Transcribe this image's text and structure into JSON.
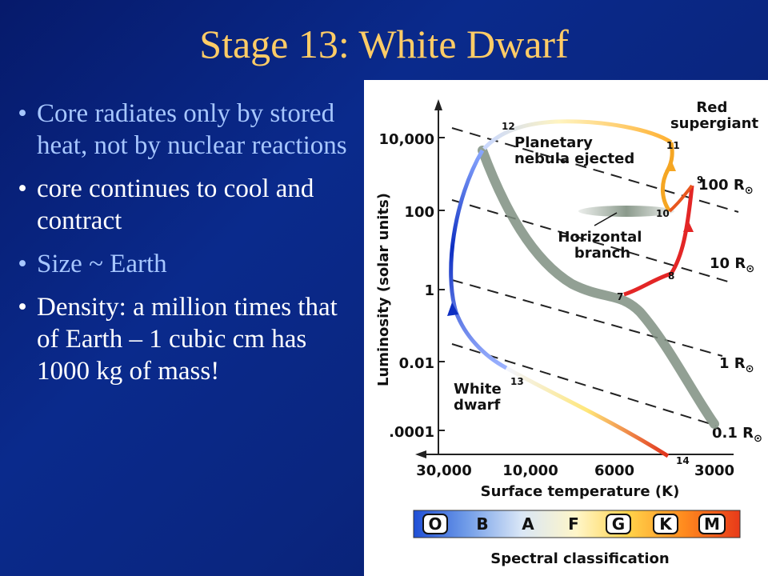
{
  "slide": {
    "title": "Stage 13: White Dwarf",
    "bullets": [
      {
        "text": "Core radiates only by stored heat, not by nuclear reactions",
        "color": "#a7c7ff"
      },
      {
        "text": "core continues to cool and contract",
        "color": "#ffffff"
      },
      {
        "text": "Size ~ Earth",
        "color": "#a7c7ff"
      },
      {
        "text": "Density: a million times that of Earth – 1 cubic cm has 1000 kg of mass!",
        "color": "#ffffff"
      }
    ]
  },
  "diagram": {
    "y_axis_label": "Luminosity (solar units)",
    "x_axis_label": "Surface temperature (K)",
    "y_ticks": [
      "10,000",
      "100",
      "1",
      "0.01",
      ".0001"
    ],
    "x_ticks": [
      "30,000",
      "10,000",
      "6000",
      "3000"
    ],
    "radius_lines": [
      "100 R",
      "10 R",
      "1 R",
      "0.1 R"
    ],
    "sun_symbol": "⊙",
    "labels": {
      "red_supergiant_1": "Red",
      "red_supergiant_2": "supergiant",
      "planetary_1": "Planetary",
      "planetary_2": "nebula ejected",
      "horizontal_1": "Horizontal",
      "horizontal_2": "branch",
      "white_dwarf_1": "White",
      "white_dwarf_2": "dwarf"
    },
    "stage_numbers": [
      "7",
      "8",
      "9",
      "10",
      "11",
      "12",
      "13",
      "14"
    ],
    "spectral_classes": [
      {
        "letter": "O",
        "color": "#1f4fd6"
      },
      {
        "letter": "B",
        "color": "#6f9be8"
      },
      {
        "letter": "A",
        "color": "#d9e6f6"
      },
      {
        "letter": "F",
        "color": "#fff6c8"
      },
      {
        "letter": "G",
        "color": "#ffd24a"
      },
      {
        "letter": "K",
        "color": "#ff8a1e"
      },
      {
        "letter": "M",
        "color": "#e83a1a"
      }
    ],
    "spectral_label": "Spectral classification"
  }
}
